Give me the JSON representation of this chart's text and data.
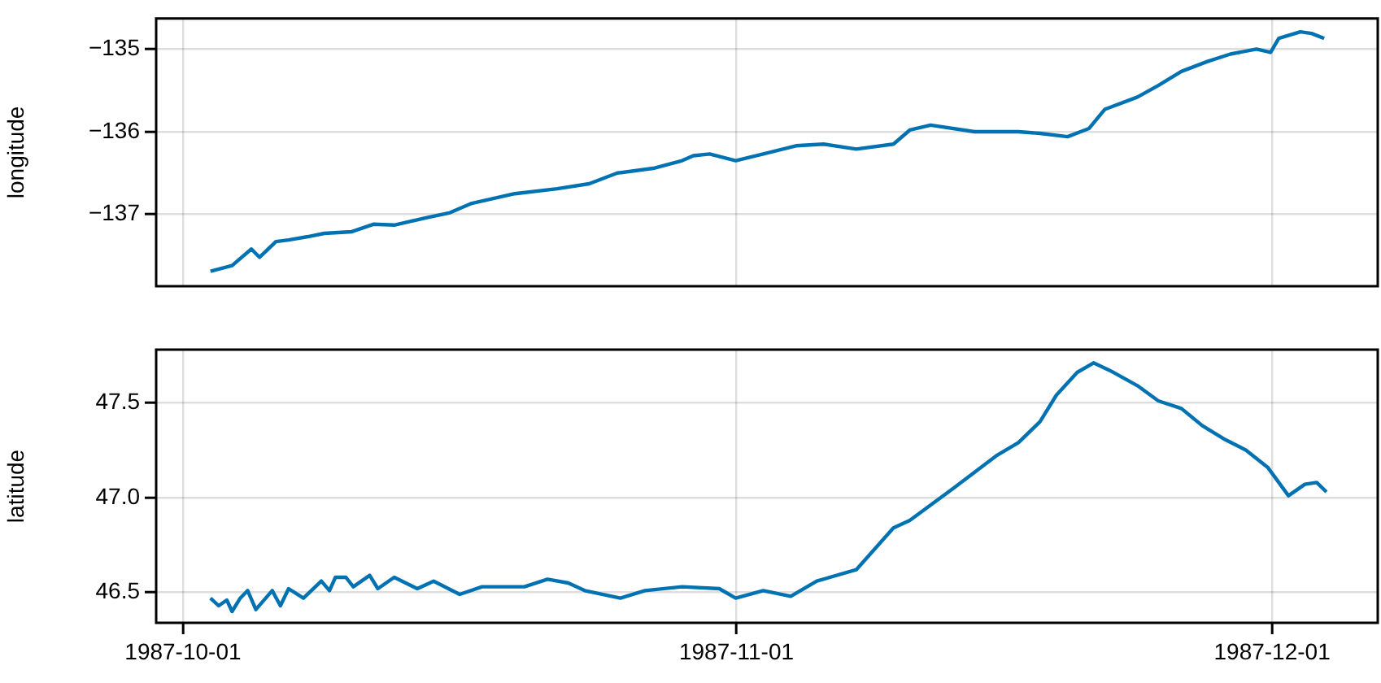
{
  "chart_data": [
    {
      "type": "line",
      "ylabel": "longitude",
      "xlim": [
        "1987-09-29T12:00",
        "1987-12-06T22:00"
      ],
      "xticks": [
        "1987-10-01",
        "1987-11-01",
        "1987-12-01"
      ],
      "ylim": [
        -137.87,
        -134.63
      ],
      "yticks": [
        {
          "value": -137,
          "label": "−137"
        },
        {
          "value": -136,
          "label": "−136"
        },
        {
          "value": -135,
          "label": "−135"
        }
      ],
      "grid": true,
      "tick_labels": "y",
      "legend": false,
      "marker": "none",
      "line_style": "solid",
      "x": [
        "1987-10-02T13:00",
        "1987-10-03T18:00",
        "1987-10-04T20:00",
        "1987-10-05T07:00",
        "1987-10-06T05:00",
        "1987-10-06T22:00",
        "1987-10-08T00:00",
        "1987-10-08T22:00",
        "1987-10-10T11:00",
        "1987-10-11T16:00",
        "1987-10-12T20:00",
        "1987-10-14T16:00",
        "1987-10-15T23:00",
        "1987-10-17T03:00",
        "1987-10-19T14:00",
        "1987-10-21T23:00",
        "1987-10-23T18:00",
        "1987-10-25T08:00",
        "1987-10-27T10:00",
        "1987-10-28T23:00",
        "1987-10-29T14:00",
        "1987-10-30T12:00",
        "1987-10-31T23:00",
        "1987-11-02T12:00",
        "1987-11-04T08:00",
        "1987-11-05T21:00",
        "1987-11-07T17:00",
        "1987-11-09T19:00",
        "1987-11-10T17:00",
        "1987-11-11T21:00",
        "1987-11-14T08:00",
        "1987-11-16T19:00",
        "1987-11-18T00:00",
        "1987-11-19T13:00",
        "1987-11-20T18:00",
        "1987-11-21T15:00",
        "1987-11-23T11:00",
        "1987-11-24T15:00",
        "1987-11-25T22:00",
        "1987-11-27T09:00",
        "1987-11-28T16:00",
        "1987-11-30T03:00",
        "1987-11-30T22:00",
        "1987-12-01T09:00",
        "1987-12-02T14:00",
        "1987-12-03T05:00",
        "1987-12-03T22:00"
      ],
      "series": [
        {
          "color": "#0072b2",
          "values": [
            -137.69,
            -137.62,
            -137.42,
            -137.52,
            -137.33,
            -137.31,
            -137.27,
            -137.23,
            -137.21,
            -137.12,
            -137.13,
            -137.04,
            -136.98,
            -136.87,
            -136.75,
            -136.69,
            -136.63,
            -136.5,
            -136.44,
            -136.35,
            -136.29,
            -136.27,
            -136.35,
            -136.27,
            -136.17,
            -136.15,
            -136.21,
            -136.15,
            -135.98,
            -135.92,
            -136.0,
            -136.0,
            -136.02,
            -136.06,
            -135.96,
            -135.73,
            -135.58,
            -135.44,
            -135.27,
            -135.15,
            -135.06,
            -135.0,
            -135.04,
            -134.87,
            -134.79,
            -134.81,
            -134.87
          ]
        }
      ]
    },
    {
      "type": "line",
      "ylabel": "latitude",
      "xlim": [
        "1987-09-29T12:00",
        "1987-12-06T22:00"
      ],
      "xticks": [
        "1987-10-01",
        "1987-11-01",
        "1987-12-01"
      ],
      "ylim": [
        46.34,
        47.78
      ],
      "yticks": [
        {
          "value": 46.5,
          "label": "46.5"
        },
        {
          "value": 47,
          "label": "47.0"
        },
        {
          "value": 47.5,
          "label": "47.5"
        }
      ],
      "grid": true,
      "legend": false,
      "marker": "none",
      "line_style": "solid",
      "x": [
        "1987-10-02T13:00",
        "1987-10-03T00:00",
        "1987-10-03T11:00",
        "1987-10-03T18:00",
        "1987-10-04T05:00",
        "1987-10-04T15:00",
        "1987-10-05T02:00",
        "1987-10-06T00:00",
        "1987-10-06T11:00",
        "1987-10-06T22:00",
        "1987-10-07T18:00",
        "1987-10-08T18:00",
        "1987-10-09T05:00",
        "1987-10-09T13:00",
        "1987-10-10T03:00",
        "1987-10-10T13:00",
        "1987-10-11T11:00",
        "1987-10-11T22:00",
        "1987-10-12T20:00",
        "1987-10-14T03:00",
        "1987-10-15T01:00",
        "1987-10-16T12:00",
        "1987-10-17T18:00",
        "1987-10-20T03:00",
        "1987-10-21T10:00",
        "1987-10-22T14:00",
        "1987-10-23T12:00",
        "1987-10-25T12:00",
        "1987-10-26T21:00",
        "1987-10-28T23:00",
        "1987-10-31T01:00",
        "1987-10-31T23:00",
        "1987-11-02T12:00",
        "1987-11-04T01:00",
        "1987-11-05T12:00",
        "1987-11-07T17:00",
        "1987-11-09T19:00",
        "1987-11-10T17:00",
        "1987-11-13T04:00",
        "1987-11-15T13:00",
        "1987-11-16T19:00",
        "1987-11-18T00:00",
        "1987-11-18T22:00",
        "1987-11-20T02:00",
        "1987-11-21T00:00",
        "1987-11-21T22:00",
        "1987-11-23T11:00",
        "1987-11-24T15:00",
        "1987-11-25T22:00",
        "1987-11-27T02:00",
        "1987-11-28T07:00",
        "1987-11-29T13:00",
        "1987-11-30T18:00",
        "1987-12-01T22:00",
        "1987-12-02T20:00",
        "1987-12-03T12:00",
        "1987-12-04T01:00"
      ],
      "series": [
        {
          "color": "#0072b2",
          "values": [
            46.47,
            46.43,
            46.46,
            46.4,
            46.47,
            46.51,
            46.41,
            46.51,
            46.43,
            46.52,
            46.47,
            46.56,
            46.51,
            46.58,
            46.58,
            46.53,
            46.59,
            46.52,
            46.58,
            46.52,
            46.56,
            46.49,
            46.53,
            46.53,
            46.57,
            46.55,
            46.51,
            46.47,
            46.51,
            46.53,
            46.52,
            46.47,
            46.51,
            46.48,
            46.56,
            46.62,
            46.84,
            46.88,
            47.05,
            47.22,
            47.29,
            47.4,
            47.54,
            47.66,
            47.71,
            47.67,
            47.59,
            47.51,
            47.47,
            47.38,
            47.31,
            47.25,
            47.16,
            47.01,
            47.07,
            47.08,
            47.03
          ]
        }
      ]
    }
  ]
}
